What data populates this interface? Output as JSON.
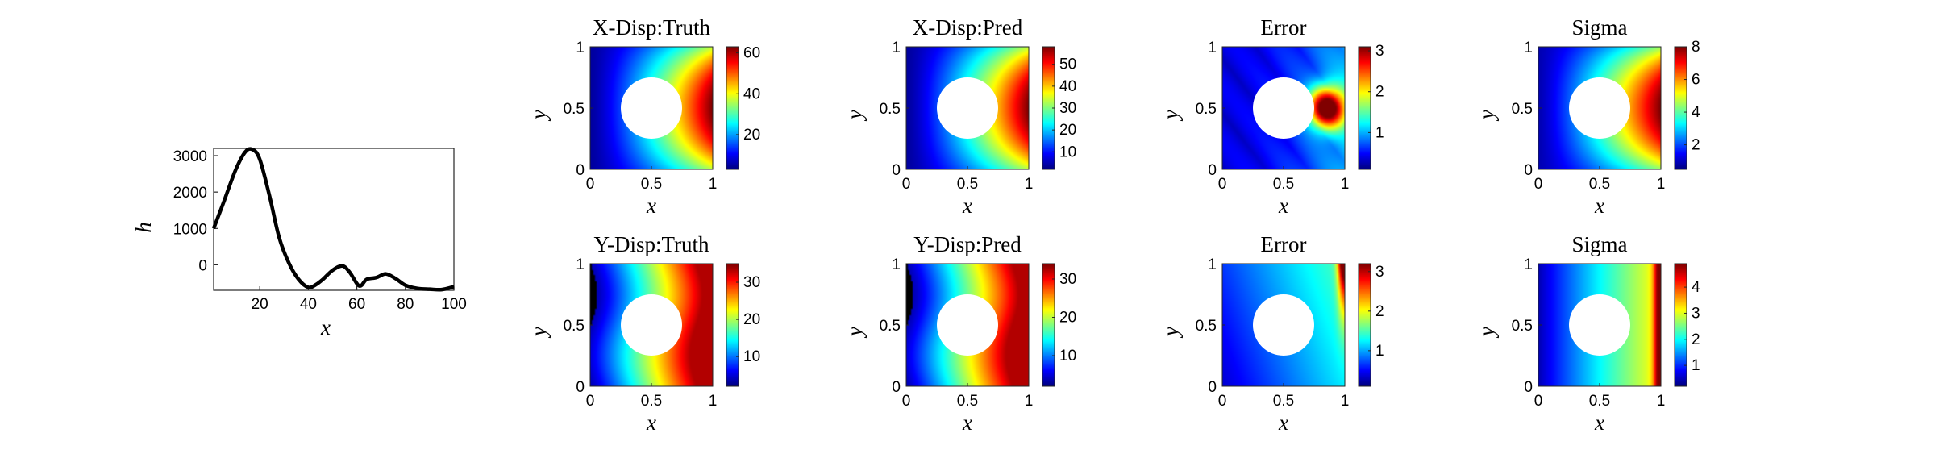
{
  "chart_data": [
    {
      "type": "line",
      "xlabel": "x",
      "ylabel": "h",
      "xlim": [
        1,
        100
      ],
      "ylim": [
        -700,
        3200
      ],
      "xticks": [
        "20",
        "40",
        "60",
        "80",
        "100"
      ],
      "yticks": [
        "0",
        "1000",
        "2000",
        "3000"
      ],
      "x": [
        1,
        5,
        10,
        14,
        17,
        20,
        24,
        28,
        32,
        36,
        40,
        43,
        46,
        50,
        54,
        57,
        61,
        64,
        68,
        72,
        76,
        80,
        85,
        90,
        95,
        100
      ],
      "y": [
        1000,
        1700,
        2600,
        3100,
        3170,
        2900,
        1900,
        750,
        50,
        -400,
        -620,
        -550,
        -400,
        -150,
        -30,
        -200,
        -580,
        -400,
        -350,
        -250,
        -380,
        -560,
        -650,
        -670,
        -680,
        -600
      ],
      "color": "#000000"
    },
    {
      "type": "heatmap",
      "title": "X-Disp:Truth",
      "xlabel": "x",
      "ylabel": "y",
      "xticks": [
        "0",
        "0.5",
        "1"
      ],
      "yticks": [
        "0",
        "0.5",
        "1"
      ],
      "colorbar": {
        "min": 3,
        "max": 63,
        "ticks": [
          20,
          40,
          60
        ]
      },
      "field": "x_disp"
    },
    {
      "type": "heatmap",
      "title": "X-Disp:Pred",
      "xlabel": "x",
      "ylabel": "y",
      "xticks": [
        "0",
        "0.5",
        "1"
      ],
      "yticks": [
        "0",
        "0.5",
        "1"
      ],
      "colorbar": {
        "min": 2,
        "max": 58,
        "ticks": [
          10,
          20,
          30,
          40,
          50
        ]
      },
      "field": "x_disp"
    },
    {
      "type": "heatmap",
      "title": "Error",
      "xlabel": "x",
      "ylabel": "y",
      "xticks": [
        "0",
        "0.5",
        "1"
      ],
      "yticks": [
        "0",
        "0.5",
        "1"
      ],
      "colorbar": {
        "min": 0.1,
        "max": 3.1,
        "ticks": [
          1,
          2,
          3
        ]
      },
      "field": "x_error"
    },
    {
      "type": "heatmap",
      "title": "Sigma",
      "xlabel": "x",
      "ylabel": "y",
      "xticks": [
        "0",
        "0.5",
        "1"
      ],
      "yticks": [
        "0",
        "0.5",
        "1"
      ],
      "colorbar": {
        "min": 0.5,
        "max": 8,
        "ticks": [
          2,
          4,
          6,
          8
        ]
      },
      "field": "x_sigma"
    },
    {
      "type": "heatmap",
      "title": "Y-Disp:Truth",
      "xlabel": "x",
      "ylabel": "y",
      "xticks": [
        "0",
        "0.5",
        "1"
      ],
      "yticks": [
        "0",
        "0.5",
        "1"
      ],
      "colorbar": {
        "min": 2,
        "max": 35,
        "ticks": [
          10,
          20,
          30
        ]
      },
      "field": "y_disp"
    },
    {
      "type": "heatmap",
      "title": "Y-Disp:Pred",
      "xlabel": "x",
      "ylabel": "y",
      "xticks": [
        "0",
        "0.5",
        "1"
      ],
      "yticks": [
        "0",
        "0.5",
        "1"
      ],
      "colorbar": {
        "min": 2,
        "max": 34,
        "ticks": [
          10,
          20,
          30
        ]
      },
      "field": "y_disp"
    },
    {
      "type": "heatmap",
      "title": "Error",
      "xlabel": "x",
      "ylabel": "y",
      "xticks": [
        "0",
        "0.5",
        "1"
      ],
      "yticks": [
        "0",
        "0.5",
        "1"
      ],
      "colorbar": {
        "min": 0.1,
        "max": 3.2,
        "ticks": [
          1,
          2,
          3
        ]
      },
      "field": "y_error"
    },
    {
      "type": "heatmap",
      "title": "Sigma",
      "xlabel": "x",
      "ylabel": "y",
      "xticks": [
        "0",
        "0.5",
        "1"
      ],
      "yticks": [
        "0",
        "0.5",
        "1"
      ],
      "colorbar": {
        "min": 0.2,
        "max": 4.9,
        "ticks": [
          1,
          2,
          3,
          4
        ]
      },
      "field": "y_sigma"
    }
  ]
}
